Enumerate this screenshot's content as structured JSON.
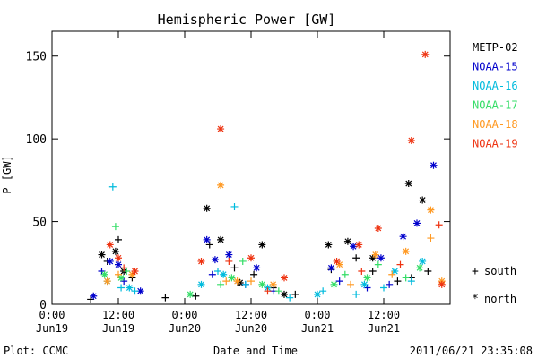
{
  "chart_data": {
    "type": "scatter",
    "title": "Hemispheric Power [GW]",
    "xlabel": "Date and Time",
    "ylabel": "P [GW]",
    "xlim": [
      "2011-06-19T00:00",
      "2011-06-22T00:00"
    ],
    "ylim": [
      0,
      165
    ],
    "y_ticks": [
      0,
      50,
      100,
      150
    ],
    "x_ticks": [
      {
        "at": "2011-06-19T00:00",
        "time": "0:00",
        "date": "Jun19"
      },
      {
        "at": "2011-06-19T12:00",
        "time": "12:00",
        "date": "Jun19"
      },
      {
        "at": "2011-06-20T00:00",
        "time": "0:00",
        "date": "Jun20"
      },
      {
        "at": "2011-06-20T12:00",
        "time": "12:00",
        "date": "Jun20"
      },
      {
        "at": "2011-06-21T00:00",
        "time": "0:00",
        "date": "Jun21"
      },
      {
        "at": "2011-06-21T12:00",
        "time": "12:00",
        "date": "Jun21"
      }
    ],
    "grid": false,
    "legend_placement": "right",
    "marker_legend": [
      {
        "symbol": "+",
        "label": "south"
      },
      {
        "symbol": "*",
        "label": "north"
      }
    ],
    "footer_left": "Plot: CCMC",
    "footer_right": "2011/06/21 23:35:08",
    "series": [
      {
        "name": "METP-02",
        "color": "#000000",
        "south": [
          [
            "2011-06-19T07:00",
            3
          ],
          [
            "2011-06-19T10:00",
            26
          ],
          [
            "2011-06-19T12:00",
            39
          ],
          [
            "2011-06-19T14:30",
            16
          ],
          [
            "2011-06-19T20:30",
            4
          ],
          [
            "2011-06-20T02:00",
            5
          ],
          [
            "2011-06-20T04:30",
            36
          ],
          [
            "2011-06-20T09:00",
            22
          ],
          [
            "2011-06-20T12:30",
            18
          ],
          [
            "2011-06-20T16:00",
            10
          ],
          [
            "2011-06-20T20:00",
            6
          ],
          [
            "2011-06-21T02:30",
            21
          ],
          [
            "2011-06-21T07:00",
            28
          ],
          [
            "2011-06-21T10:00",
            20
          ],
          [
            "2011-06-21T14:30",
            14
          ],
          [
            "2011-06-21T17:00",
            16
          ],
          [
            "2011-06-21T20:00",
            20
          ]
        ],
        "north": [
          [
            "2011-06-19T09:00",
            30
          ],
          [
            "2011-06-19T11:30",
            32
          ],
          [
            "2011-06-19T13:00",
            20
          ],
          [
            "2011-06-20T04:00",
            58
          ],
          [
            "2011-06-20T06:30",
            39
          ],
          [
            "2011-06-20T10:00",
            13
          ],
          [
            "2011-06-20T14:00",
            36
          ],
          [
            "2011-06-20T18:00",
            6
          ],
          [
            "2011-06-21T02:00",
            36
          ],
          [
            "2011-06-21T05:30",
            38
          ],
          [
            "2011-06-21T10:00",
            28
          ],
          [
            "2011-06-21T16:30",
            73
          ],
          [
            "2011-06-21T19:00",
            63
          ]
        ]
      },
      {
        "name": "NOAA-15",
        "color": "#0000cc",
        "south": [
          [
            "2011-06-19T09:00",
            20
          ],
          [
            "2011-06-19T13:00",
            14
          ],
          [
            "2011-06-20T05:00",
            18
          ],
          [
            "2011-06-20T11:00",
            12
          ],
          [
            "2011-06-20T16:00",
            8
          ],
          [
            "2011-06-21T04:00",
            14
          ],
          [
            "2011-06-21T09:00",
            10
          ],
          [
            "2011-06-21T13:00",
            12
          ]
        ],
        "north": [
          [
            "2011-06-19T07:30",
            5
          ],
          [
            "2011-06-19T10:30",
            26
          ],
          [
            "2011-06-19T12:00",
            24
          ],
          [
            "2011-06-19T16:00",
            8
          ],
          [
            "2011-06-20T04:00",
            39
          ],
          [
            "2011-06-20T05:30",
            27
          ],
          [
            "2011-06-20T08:00",
            30
          ],
          [
            "2011-06-20T13:00",
            22
          ],
          [
            "2011-06-21T02:30",
            22
          ],
          [
            "2011-06-21T06:30",
            35
          ],
          [
            "2011-06-21T11:30",
            28
          ],
          [
            "2011-06-21T15:30",
            41
          ],
          [
            "2011-06-21T18:00",
            49
          ],
          [
            "2011-06-21T21:00",
            84
          ]
        ]
      },
      {
        "name": "NOAA-16",
        "color": "#00bbdd",
        "south": [
          [
            "2011-06-19T11:00",
            71
          ],
          [
            "2011-06-19T12:30",
            10
          ],
          [
            "2011-06-19T15:00",
            8
          ],
          [
            "2011-06-20T06:00",
            20
          ],
          [
            "2011-06-20T09:00",
            59
          ],
          [
            "2011-06-20T11:00",
            12
          ],
          [
            "2011-06-20T19:00",
            4
          ],
          [
            "2011-06-21T01:00",
            8
          ],
          [
            "2011-06-21T07:00",
            6
          ],
          [
            "2011-06-21T12:00",
            10
          ],
          [
            "2011-06-21T17:00",
            14
          ]
        ],
        "north": [
          [
            "2011-06-19T10:00",
            14
          ],
          [
            "2011-06-19T14:00",
            10
          ],
          [
            "2011-06-20T03:00",
            12
          ],
          [
            "2011-06-20T07:00",
            18
          ],
          [
            "2011-06-20T15:00",
            10
          ],
          [
            "2011-06-21T00:00",
            6
          ],
          [
            "2011-06-21T08:30",
            12
          ],
          [
            "2011-06-21T14:00",
            20
          ],
          [
            "2011-06-21T19:00",
            26
          ]
        ]
      },
      {
        "name": "NOAA-17",
        "color": "#33dd66",
        "south": [
          [
            "2011-06-19T11:30",
            47
          ],
          [
            "2011-06-19T13:30",
            20
          ],
          [
            "2011-06-20T06:30",
            12
          ],
          [
            "2011-06-20T10:30",
            26
          ],
          [
            "2011-06-20T17:00",
            8
          ],
          [
            "2011-06-21T05:00",
            18
          ],
          [
            "2011-06-21T11:00",
            24
          ],
          [
            "2011-06-21T16:00",
            16
          ]
        ],
        "north": [
          [
            "2011-06-19T09:30",
            18
          ],
          [
            "2011-06-19T12:30",
            16
          ],
          [
            "2011-06-20T01:00",
            6
          ],
          [
            "2011-06-20T08:30",
            16
          ],
          [
            "2011-06-20T14:00",
            12
          ],
          [
            "2011-06-21T03:00",
            12
          ],
          [
            "2011-06-21T09:00",
            16
          ],
          [
            "2011-06-21T18:30",
            22
          ]
        ]
      },
      {
        "name": "NOAA-18",
        "color": "#ff9922",
        "south": [
          [
            "2011-06-19T12:00",
            18
          ],
          [
            "2011-06-20T07:30",
            14
          ],
          [
            "2011-06-20T12:00",
            14
          ],
          [
            "2011-06-21T06:00",
            12
          ],
          [
            "2011-06-21T13:30",
            18
          ],
          [
            "2011-06-21T20:30",
            40
          ]
        ],
        "north": [
          [
            "2011-06-19T10:00",
            14
          ],
          [
            "2011-06-19T14:30",
            18
          ],
          [
            "2011-06-20T06:30",
            72
          ],
          [
            "2011-06-20T09:30",
            14
          ],
          [
            "2011-06-20T16:00",
            12
          ],
          [
            "2011-06-21T04:00",
            24
          ],
          [
            "2011-06-21T10:30",
            30
          ],
          [
            "2011-06-21T16:00",
            32
          ],
          [
            "2011-06-21T20:30",
            57
          ],
          [
            "2011-06-21T22:30",
            14
          ]
        ]
      },
      {
        "name": "NOAA-19",
        "color": "#ee3311",
        "south": [
          [
            "2011-06-19T13:00",
            22
          ],
          [
            "2011-06-20T08:00",
            26
          ],
          [
            "2011-06-20T15:00",
            8
          ],
          [
            "2011-06-21T08:00",
            20
          ],
          [
            "2011-06-21T15:00",
            24
          ],
          [
            "2011-06-21T22:00",
            48
          ]
        ],
        "north": [
          [
            "2011-06-19T10:30",
            36
          ],
          [
            "2011-06-19T12:00",
            28
          ],
          [
            "2011-06-19T15:00",
            20
          ],
          [
            "2011-06-20T03:00",
            26
          ],
          [
            "2011-06-20T06:30",
            106
          ],
          [
            "2011-06-20T12:00",
            28
          ],
          [
            "2011-06-20T18:00",
            16
          ],
          [
            "2011-06-21T03:30",
            26
          ],
          [
            "2011-06-21T07:30",
            36
          ],
          [
            "2011-06-21T11:00",
            46
          ],
          [
            "2011-06-21T17:00",
            99
          ],
          [
            "2011-06-21T19:30",
            151
          ],
          [
            "2011-06-21T22:30",
            12
          ]
        ]
      }
    ]
  }
}
